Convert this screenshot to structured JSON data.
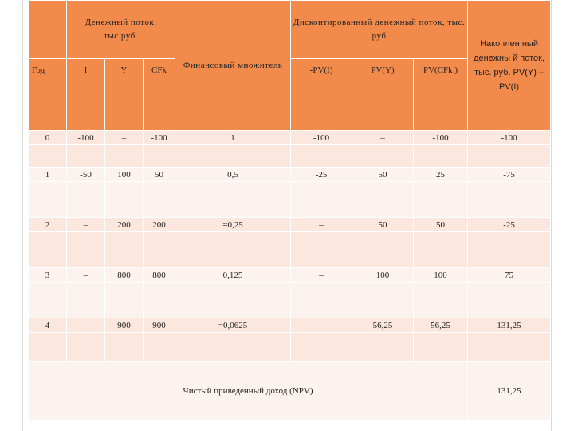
{
  "header": {
    "cash_flow": "Денежный поток, тыс.руб.",
    "multiplier": "Финансовый множитель",
    "discounted": "Дисконтированный денежный поток, тыс. руб",
    "accumulated": "Накоплен ный денежны й поток, тыс. руб. PV(Y) – PV(I)"
  },
  "sub": {
    "year": "Год",
    "i": "I",
    "y": "Y",
    "cf": "CFk",
    "pv_i": "-PV(I)",
    "pv_y": "PV(Y)",
    "pv_cf": "PV(CFk )"
  },
  "rows": [
    {
      "year": "0",
      "i": "-100",
      "y": "–",
      "cf": "-100",
      "mult": "1",
      "pv_i": "-100",
      "pv_y": "–",
      "pv_cf": "-100",
      "acc": "-100"
    },
    {
      "year": "1",
      "i": "-50",
      "y": "100",
      "cf": "50",
      "mult": "0,5",
      "pv_i": "-25",
      "pv_y": "50",
      "pv_cf": "25",
      "acc": "-75"
    },
    {
      "year": "2",
      "i": "–",
      "y": "200",
      "cf": "200",
      "mult": "=0,25",
      "pv_i": "–",
      "pv_y": "50",
      "pv_cf": "50",
      "acc": "-25"
    },
    {
      "year": "3",
      "i": "–",
      "y": "800",
      "cf": "800",
      "mult": "0,125",
      "pv_i": "–",
      "pv_y": "100",
      "pv_cf": "100",
      "acc": "75"
    },
    {
      "year": "4",
      "i": "-",
      "y": "900",
      "cf": "900",
      "mult": "=0,0625",
      "pv_i": "-",
      "pv_y": "56,25",
      "pv_cf": "56,25",
      "acc": "131,25"
    }
  ],
  "footer": {
    "label": "Чистый приведенный доход (NPV)",
    "value": "131,25"
  }
}
